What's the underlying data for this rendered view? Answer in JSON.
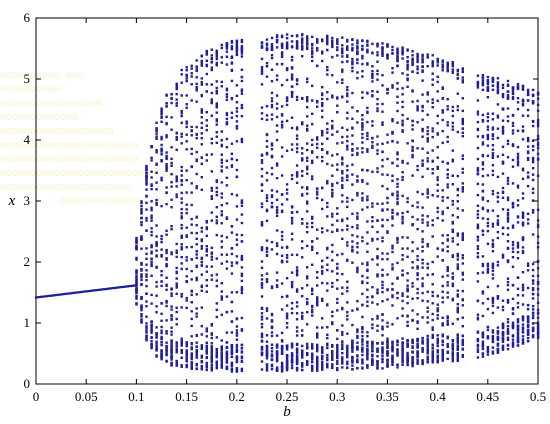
{
  "chart_data": {
    "type": "scatter",
    "title": "",
    "xlabel": "b",
    "ylabel": "x",
    "xlim": [
      0,
      0.5
    ],
    "ylim": [
      0,
      6
    ],
    "xticks": [
      0,
      0.05,
      0.1,
      0.15,
      0.2,
      0.25,
      0.3,
      0.35,
      0.4,
      0.45,
      0.5
    ],
    "xtick_labels": [
      "0",
      "0.05",
      "0.1",
      "0.15",
      "0.2",
      "0.25",
      "0.3",
      "0.35",
      "0.4",
      "0.45",
      "0.5"
    ],
    "yticks": [
      0,
      1,
      2,
      3,
      4,
      5,
      6
    ],
    "ytick_labels": [
      "0",
      "1",
      "2",
      "3",
      "4",
      "5",
      "6"
    ],
    "grid": false,
    "legend": "none",
    "point_color": "#1f1f9c",
    "series": [
      {
        "description_kind": "bifurcation",
        "periodic_branch": {
          "x": [
            0.0,
            0.1
          ],
          "y": [
            1.42,
            1.62
          ]
        },
        "chaotic_region": {
          "b_start": 0.1,
          "b_end": 0.5,
          "upper_envelope": [
            [
              0.1,
              2.4
            ],
            [
              0.11,
              3.6
            ],
            [
              0.12,
              4.3
            ],
            [
              0.13,
              4.75
            ],
            [
              0.14,
              5.05
            ],
            [
              0.15,
              5.25
            ],
            [
              0.16,
              5.4
            ],
            [
              0.18,
              5.55
            ],
            [
              0.2,
              5.65
            ],
            [
              0.22,
              5.7
            ],
            [
              0.25,
              5.75
            ],
            [
              0.28,
              5.72
            ],
            [
              0.3,
              5.7
            ],
            [
              0.35,
              5.58
            ],
            [
              0.4,
              5.38
            ],
            [
              0.43,
              5.2
            ],
            [
              0.45,
              5.05
            ],
            [
              0.47,
              4.98
            ],
            [
              0.5,
              4.8
            ]
          ],
          "lower_envelope": [
            [
              0.1,
              1.3
            ],
            [
              0.11,
              0.7
            ],
            [
              0.12,
              0.45
            ],
            [
              0.13,
              0.32
            ],
            [
              0.15,
              0.25
            ],
            [
              0.2,
              0.2
            ],
            [
              0.25,
              0.2
            ],
            [
              0.3,
              0.23
            ],
            [
              0.35,
              0.26
            ],
            [
              0.4,
              0.32
            ],
            [
              0.45,
              0.45
            ],
            [
              0.5,
              0.75
            ]
          ],
          "gaps_in_b": [
            [
              0.209,
              0.222
            ],
            [
              0.428,
              0.436
            ]
          ],
          "dense_band_near_bottom": [
            0.15,
            0.6
          ]
        }
      }
    ]
  }
}
